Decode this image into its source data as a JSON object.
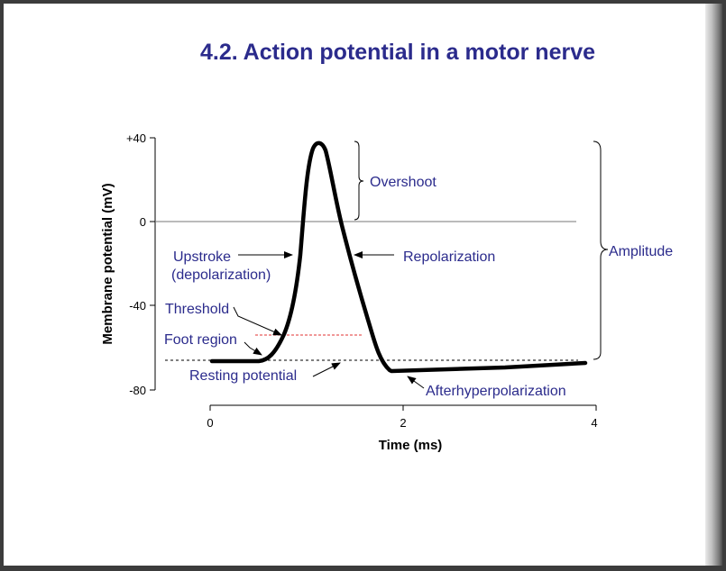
{
  "slide": {
    "title": "4.2. Action potential in a motor nerve"
  },
  "y_axis": {
    "label": "Membrane potential (mV)",
    "ticks": [
      "+40",
      "0",
      "-40",
      "-80"
    ]
  },
  "x_axis": {
    "label": "Time (ms)",
    "ticks": [
      "0",
      "2",
      "4"
    ]
  },
  "annotations": {
    "overshoot": "Overshoot",
    "amplitude": "Amplitude",
    "upstroke_line1": "Upstroke",
    "upstroke_line2": "(depolarization)",
    "repolarization": "Repolarization",
    "threshold": "Threshold",
    "foot_region": "Foot region",
    "resting_potential": "Resting potential",
    "afterhyperpolarization": "Afterhyperpolarization"
  },
  "colors": {
    "title": "#2b2b8c",
    "annotation_text": "#2b2b8c",
    "trace": "#000000",
    "threshold_line": "#e03030",
    "resting_line": "#000000"
  }
}
